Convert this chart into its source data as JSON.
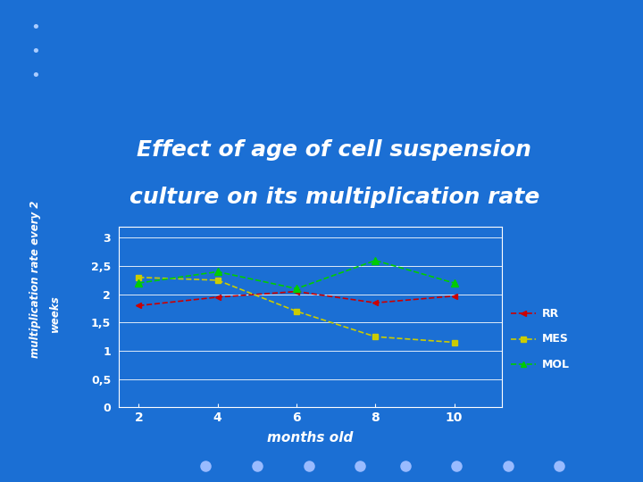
{
  "title_line1": "Effect of age of cell suspension",
  "title_line2": "culture on its multiplication rate",
  "title_bg_color": "#3300AA",
  "bg_color": "#1B6FD4",
  "plot_bg_color": "#1B6FD4",
  "x": [
    2,
    4,
    6,
    8,
    10
  ],
  "RR": [
    1.8,
    1.95,
    2.05,
    1.85,
    1.97
  ],
  "MES": [
    2.3,
    2.25,
    1.7,
    1.25,
    1.15
  ],
  "MOL": [
    2.2,
    2.4,
    2.1,
    2.6,
    2.2
  ],
  "RR_color": "#CC0000",
  "MES_color": "#CCCC00",
  "MOL_color": "#00CC00",
  "xlabel": "months old",
  "ylabel_top": "multiplication rate every 2",
  "ylabel_bottom": "weeks",
  "yticks": [
    0,
    0.5,
    1,
    1.5,
    2,
    2.5,
    3
  ],
  "ytick_labels": [
    "0",
    "0,5",
    "1",
    "1,5",
    "2",
    "2,5",
    "3"
  ],
  "xticks": [
    2,
    4,
    6,
    8,
    10
  ],
  "ylim": [
    0,
    3.2
  ],
  "xlim": [
    1.5,
    11.2
  ],
  "grid_color": "#FFFFFF",
  "axis_color": "#FFFFFF",
  "text_color": "#FFFFFF",
  "bottom_bar_color": "#3300AA",
  "dot_color_dark": "#1B6FD4",
  "dot_color_light": "#99BBFF"
}
